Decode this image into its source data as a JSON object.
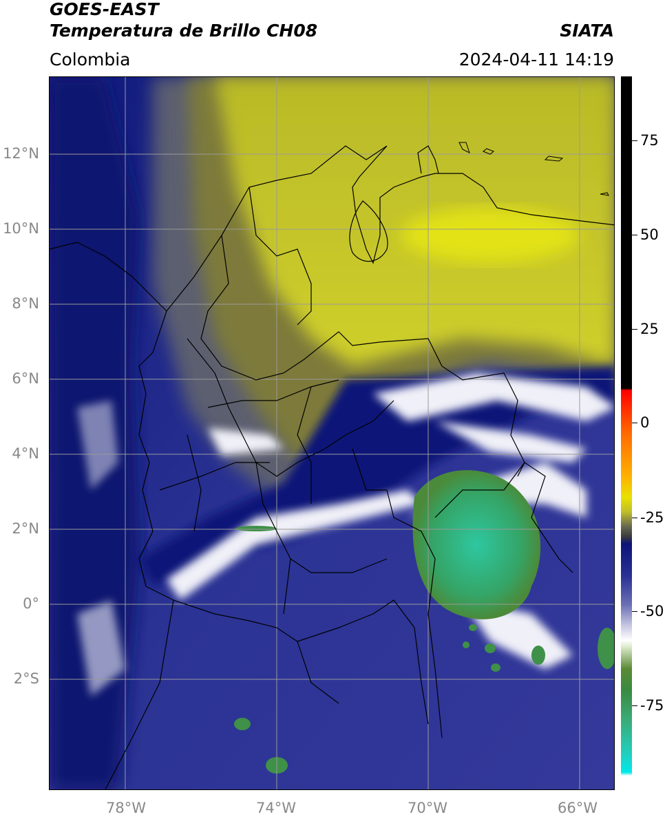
{
  "header": {
    "title_line1": "GOES-EAST",
    "title_line2": "Temperatura de Brillo CH08",
    "organization": "SIATA",
    "region": "Colombia",
    "timestamp": "2024-04-11 14:19"
  },
  "map": {
    "lat_labels": [
      "12°N",
      "10°N",
      "8°N",
      "6°N",
      "4°N",
      "2°N",
      "0°",
      "2°S"
    ],
    "lon_labels": [
      "78°W",
      "74°W",
      "70°W",
      "66°W"
    ],
    "colors": {
      "ocean_blue": "#2a3190",
      "deep_blue": "#0b1378",
      "cloud_white": "#f2f2f8",
      "yellow_dry": "#c9c92a",
      "olive": "#6e6e3c",
      "green_cold": "#3a9a56",
      "teal_cold": "#2fbf9c",
      "grid": "#9a9a9a",
      "border": "#000000"
    }
  },
  "colorbar": {
    "ticks": [
      "75",
      "50",
      "25",
      "0",
      "-25",
      "-50",
      "-75"
    ]
  }
}
